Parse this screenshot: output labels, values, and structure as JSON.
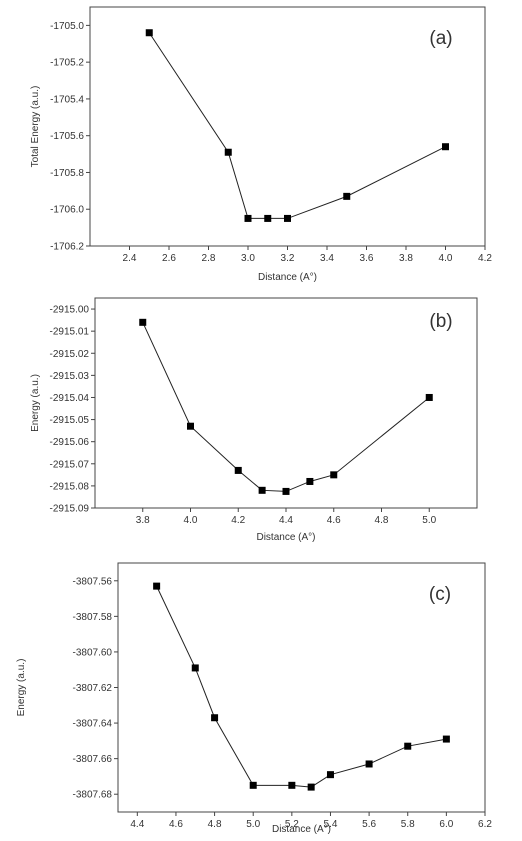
{
  "chart_data": [
    {
      "type": "line",
      "panel_label": "(a)",
      "xlabel": "Distance (A°)",
      "ylabel": "Total Energy (a.u.)",
      "xlim": [
        2.2,
        4.2
      ],
      "ylim": [
        -1706.2,
        -1704.9
      ],
      "xticks": [
        "2.4",
        "2.6",
        "2.8",
        "3.0",
        "3.2",
        "3.4",
        "3.6",
        "3.8",
        "4.0",
        "4.2"
      ],
      "yticks": [
        "-1705.0",
        "-1705.2",
        "-1705.4",
        "-1705.6",
        "-1705.8",
        "-1706.0",
        "-1706.2"
      ],
      "x": [
        2.5,
        2.9,
        3.0,
        3.1,
        3.2,
        3.5,
        4.0
      ],
      "y": [
        -1705.04,
        -1705.69,
        -1706.05,
        -1706.05,
        -1706.05,
        -1705.93,
        -1705.66
      ],
      "grid": false
    },
    {
      "type": "line",
      "panel_label": "(b)",
      "xlabel": "Distance (A°)",
      "ylabel": "Energy (a.u.)",
      "xlim": [
        3.6,
        5.2
      ],
      "ylim": [
        -2915.09,
        -2914.995
      ],
      "xticks": [
        "3.8",
        "4.0",
        "4.2",
        "4.4",
        "4.6",
        "4.8",
        "5.0"
      ],
      "yticks": [
        "-2915.00",
        "-2915.01",
        "-2915.02",
        "-2915.03",
        "-2915.04",
        "-2915.05",
        "-2915.06",
        "-2915.07",
        "-2915.08",
        "-2915.09"
      ],
      "x": [
        3.8,
        4.0,
        4.2,
        4.3,
        4.4,
        4.5,
        4.6,
        5.0
      ],
      "y": [
        -2915.006,
        -2915.053,
        -2915.073,
        -2915.082,
        -2915.0825,
        -2915.078,
        -2915.075,
        -2915.04
      ],
      "grid": false
    },
    {
      "type": "line",
      "panel_label": "(c)",
      "xlabel": "Distance (A°)",
      "ylabel": "Energy (a.u.)",
      "xlim": [
        4.3,
        6.2
      ],
      "ylim": [
        -3807.69,
        -3807.55
      ],
      "xticks": [
        "4.4",
        "4.6",
        "4.8",
        "5.0",
        "5.2",
        "5.4",
        "5.6",
        "5.8",
        "6.0",
        "6.2"
      ],
      "yticks": [
        "-3807.56",
        "-3807.58",
        "-3807.60",
        "-3807.62",
        "-3807.64",
        "-3807.66",
        "-3807.68"
      ],
      "x": [
        4.5,
        4.7,
        4.8,
        5.0,
        5.2,
        5.3,
        5.4,
        5.6,
        5.8,
        6.0
      ],
      "y": [
        -3807.563,
        -3807.609,
        -3807.637,
        -3807.675,
        -3807.675,
        -3807.676,
        -3807.669,
        -3807.663,
        -3807.653,
        -3807.649
      ],
      "grid": false
    }
  ]
}
